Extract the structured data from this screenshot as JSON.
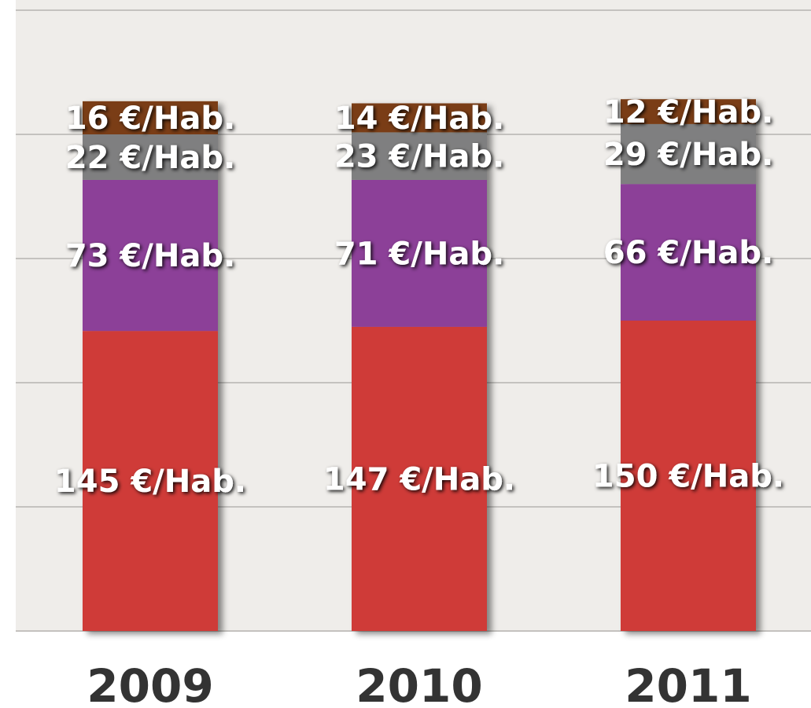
{
  "chart_data": {
    "type": "stacked_bar",
    "categories": [
      "2009",
      "2010",
      "2011"
    ],
    "series": [
      {
        "color": "#cf3b38",
        "values": [
          145,
          147,
          150
        ],
        "value_labels": [
          "145 €/Hab.",
          "147 €/Hab.",
          "150 €/Hab."
        ]
      },
      {
        "color": "#8c3f98",
        "values": [
          73,
          71,
          66
        ],
        "value_labels": [
          "73 €/Hab.",
          "71 €/Hab.",
          "66 €/Hab."
        ]
      },
      {
        "color": "#7f7f80",
        "values": [
          22,
          23,
          29
        ],
        "value_labels": [
          "22 €/Hab.",
          "23 €/Hab.",
          "29 €/Hab."
        ]
      },
      {
        "color": "#7a3e14",
        "values": [
          16,
          14,
          12
        ],
        "value_labels": [
          "16 €/Hab.",
          "14 €/Hab.",
          "12 €/Hab."
        ]
      }
    ],
    "ylim": [
      0,
      300
    ],
    "yticks": [
      0,
      60,
      120,
      180,
      240,
      300
    ],
    "grid": true
  }
}
